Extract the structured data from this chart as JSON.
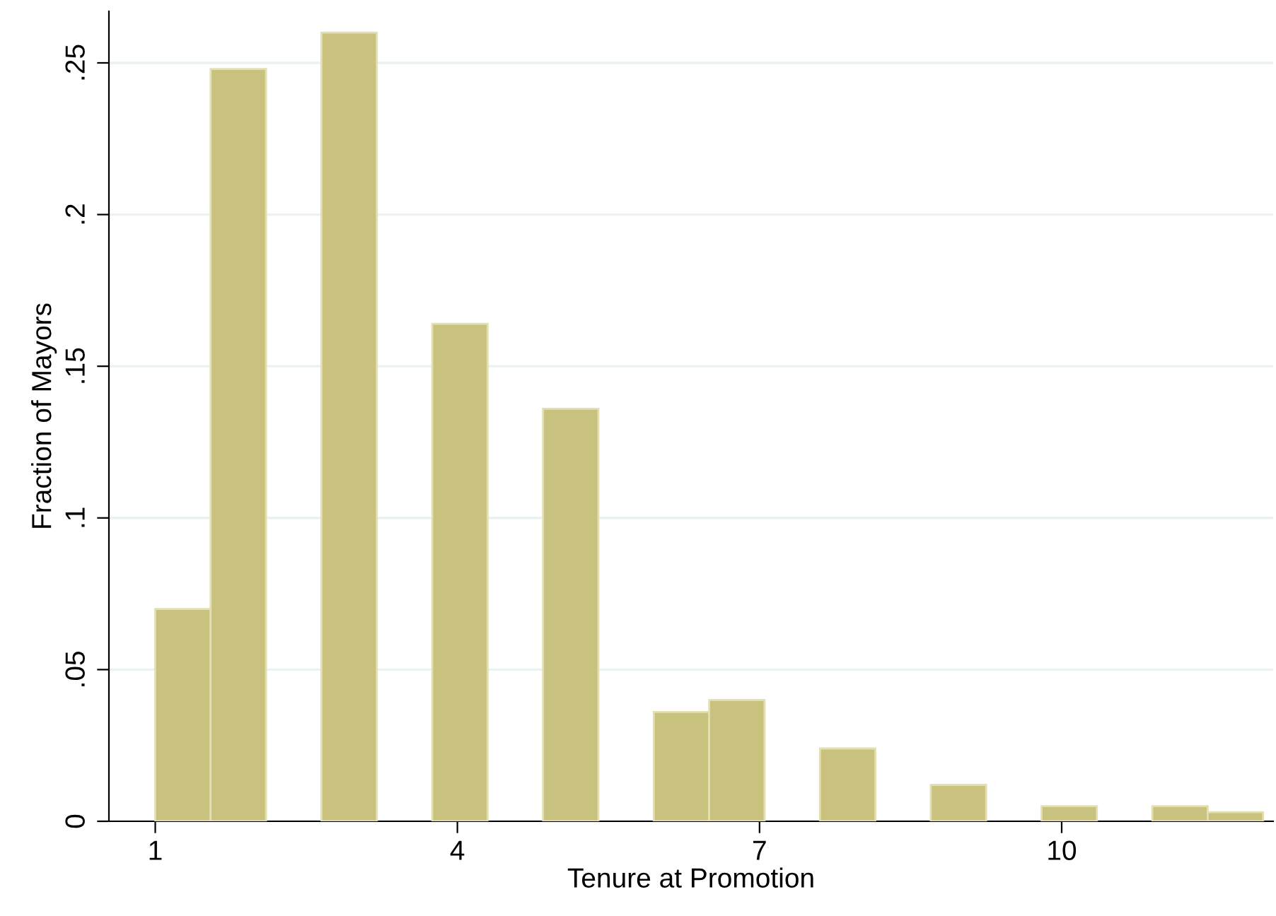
{
  "chart_data": {
    "type": "histogram",
    "xlabel": "Tenure at Promotion",
    "ylabel": "Fraction of Mayors",
    "bins": [
      1,
      1.55,
      2.1,
      2.65,
      3.2,
      3.75,
      4.3,
      4.85,
      5.4,
      5.95,
      6.5,
      7.05,
      7.6,
      8.15,
      8.7,
      9.25,
      9.8,
      10.35,
      10.9,
      11.45,
      12
    ],
    "values": [
      0.07,
      0.248,
      0,
      0.26,
      0,
      0.164,
      0,
      0.136,
      0,
      0.036,
      0.04,
      0,
      0.024,
      0,
      0.012,
      0,
      0.005,
      0,
      0.005,
      0.003
    ],
    "color": "#c9c27f",
    "xlim": [
      0.54,
      12.1
    ],
    "xticks": [
      1,
      4,
      7,
      10
    ],
    "ylim": [
      0,
      0.267
    ],
    "yticks": [
      {
        "value": 0,
        "label": "0"
      },
      {
        "value": 0.05,
        "label": ".05"
      },
      {
        "value": 0.1,
        "label": ".1"
      },
      {
        "value": 0.15,
        "label": ".15"
      },
      {
        "value": 0.2,
        "label": ".2"
      },
      {
        "value": 0.25,
        "label": ".25"
      }
    ],
    "grid": "y",
    "legend": false
  }
}
